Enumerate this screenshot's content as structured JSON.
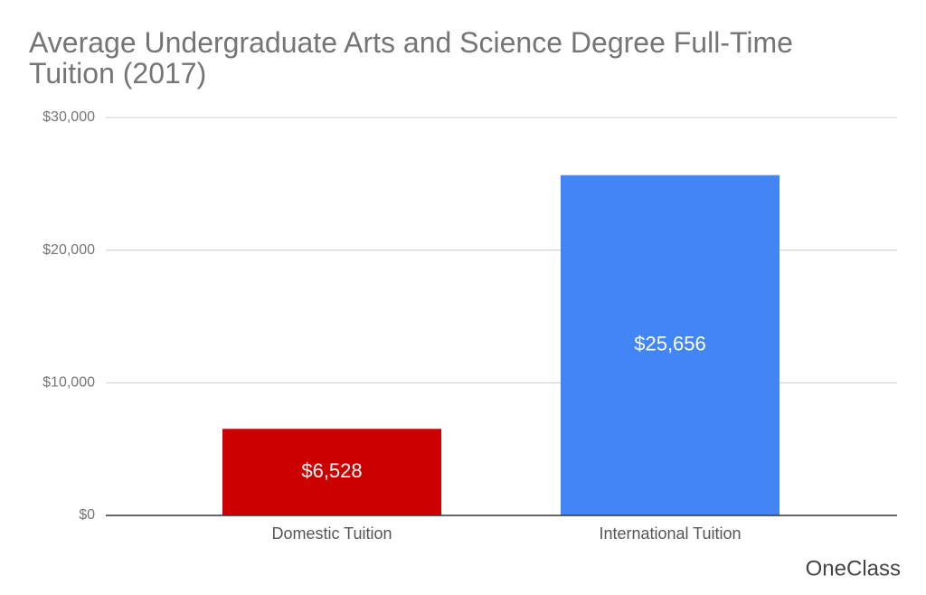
{
  "chart_data": {
    "type": "bar",
    "title": "Average Undergraduate Arts and Science Degree Full-Time Tuition (2017)",
    "categories": [
      "Domestic Tuition",
      "International Tuition"
    ],
    "values": [
      6528,
      25656
    ],
    "value_labels": [
      "$6,528",
      "$25,656"
    ],
    "colors": [
      "#cc0000",
      "#4285f4"
    ],
    "ylim": [
      0,
      30000
    ],
    "yticks": [
      {
        "value": 0,
        "label": "$0"
      },
      {
        "value": 10000,
        "label": "$10,000"
      },
      {
        "value": 20000,
        "label": "$20,000"
      },
      {
        "value": 30000,
        "label": "$30,000"
      }
    ],
    "grid": true,
    "watermark": "OneClass"
  }
}
